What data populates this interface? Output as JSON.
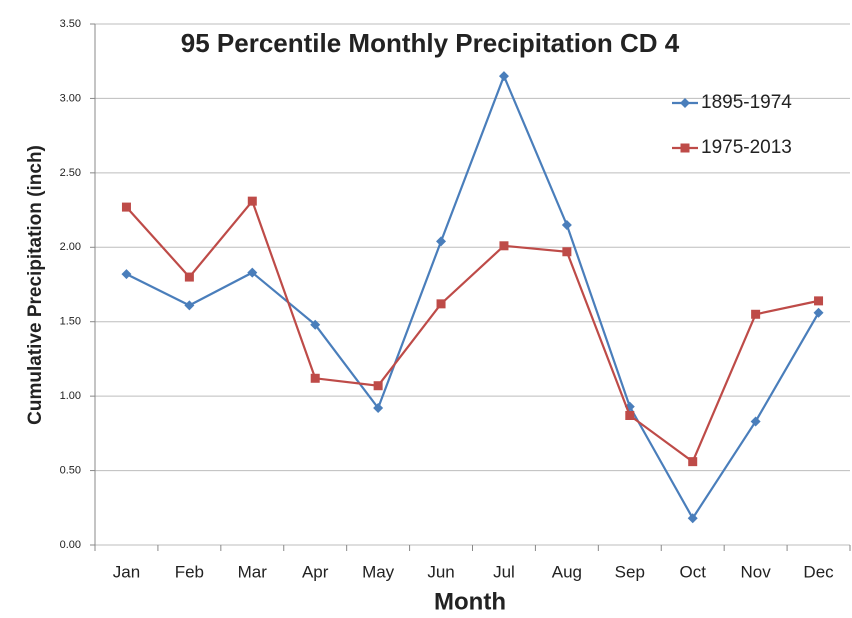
{
  "chart_data": {
    "type": "line",
    "title": "95 Percentile Monthly Precipitation CD 4",
    "x_label": "Month",
    "y_label": "Cumulative Precipitation (inch)",
    "categories": [
      "Jan",
      "Feb",
      "Mar",
      "Apr",
      "May",
      "Jun",
      "Jul",
      "Aug",
      "Sep",
      "Oct",
      "Nov",
      "Dec"
    ],
    "series": [
      {
        "name": "1895-1974",
        "color": "#4a7ebb",
        "marker": "diamond",
        "values": [
          1.82,
          1.61,
          1.83,
          1.48,
          0.92,
          2.04,
          3.15,
          2.15,
          0.93,
          0.18,
          0.83,
          1.56
        ]
      },
      {
        "name": "1975-2013",
        "color": "#be4b48",
        "marker": "square",
        "values": [
          2.27,
          1.8,
          2.31,
          1.12,
          1.07,
          1.62,
          2.01,
          1.97,
          0.87,
          0.56,
          1.55,
          1.64
        ]
      }
    ],
    "ylim": [
      0,
      3.5
    ],
    "yticks": [
      {
        "value": 0,
        "label": "0.00"
      },
      {
        "value": 0.5,
        "label": "0.50"
      },
      {
        "value": 1,
        "label": "1.00"
      },
      {
        "value": 1.5,
        "label": "1.50"
      },
      {
        "value": 2,
        "label": "2.00"
      },
      {
        "value": 2.5,
        "label": "2.50"
      },
      {
        "value": 3,
        "label": "3.00"
      },
      {
        "value": 3.5,
        "label": "3.50"
      }
    ],
    "grid": true,
    "legend": "top-right"
  }
}
